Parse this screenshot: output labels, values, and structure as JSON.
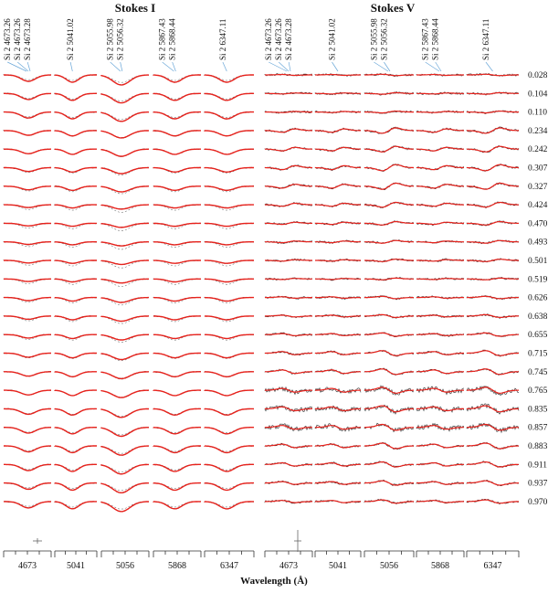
{
  "chart_data": {
    "type": "line",
    "title": "Stokes I and Stokes V line profiles vs rotation phase",
    "panels": [
      {
        "title": "Stokes I",
        "windows": [
          {
            "center": "4673",
            "lines": [
              "Si 2 4673.26",
              "Si 2 4673.26",
              "Si 2 4673.28"
            ]
          },
          {
            "center": "5041",
            "lines": [
              "Si 2 5041.02"
            ]
          },
          {
            "center": "5056",
            "lines": [
              "Si 2 5055.98",
              "Si 2 5056.32"
            ]
          },
          {
            "center": "5868",
            "lines": [
              "Si 2 5867.43",
              "Si 2 5868.44"
            ]
          },
          {
            "center": "6347",
            "lines": [
              "Si 2 6347.11"
            ]
          }
        ]
      },
      {
        "title": "Stokes V",
        "windows": [
          {
            "center": "4673",
            "lines": [
              "Si 2 4673.26",
              "Si 2 4673.26",
              "Si 2 4673.28"
            ]
          },
          {
            "center": "5041",
            "lines": [
              "Si 2 5041.02"
            ]
          },
          {
            "center": "5056",
            "lines": [
              "Si 2 5055.98",
              "Si 2 5056.32"
            ]
          },
          {
            "center": "5868",
            "lines": [
              "Si 2 5867.43",
              "Si 2 5868.44"
            ]
          },
          {
            "center": "6347",
            "lines": [
              "Si 2 6347.11"
            ]
          }
        ]
      }
    ],
    "phases": [
      "0.028",
      "0.104",
      "0.110",
      "0.234",
      "0.242",
      "0.307",
      "0.327",
      "0.424",
      "0.470",
      "0.493",
      "0.501",
      "0.519",
      "0.626",
      "0.638",
      "0.655",
      "0.715",
      "0.745",
      "0.765",
      "0.835",
      "0.857",
      "0.883",
      "0.911",
      "0.937",
      "0.970"
    ],
    "xlabel": "Wavelength (Å)",
    "series": [
      {
        "name": "observed",
        "color": "#222222"
      },
      {
        "name": "model",
        "color": "#e8221c"
      },
      {
        "name": "mean profile",
        "color": "#777777"
      }
    ],
    "grid": false
  }
}
